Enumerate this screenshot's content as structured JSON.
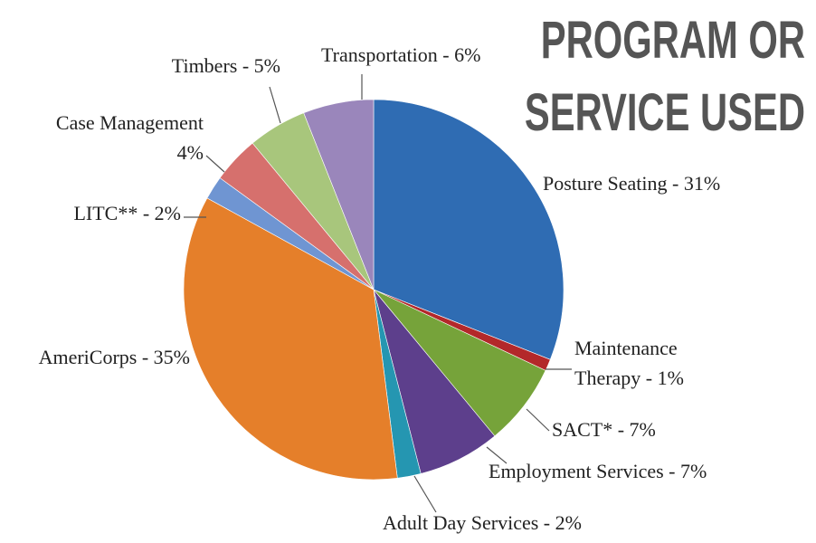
{
  "chart_data": {
    "type": "pie",
    "title": [
      "PROGRAM OR",
      "SERVICE USED"
    ],
    "labels": [
      [
        "Posture Seating - 31%"
      ],
      [
        "Maintenance",
        "Therapy - 1%"
      ],
      [
        "SACT* - 7%"
      ],
      [
        "Employment Services - 7%"
      ],
      [
        "Adult Day Services - 2%"
      ],
      [
        "AmeriCorps - 35%"
      ],
      [
        "LITC** - 2%"
      ],
      [
        "Case Management",
        "4%"
      ],
      [
        "Timbers - 5%"
      ],
      [
        "Transportation - 6%"
      ]
    ],
    "values": [
      31,
      1,
      7,
      7,
      2,
      35,
      2,
      4,
      5,
      6
    ],
    "colors": [
      "#2f6cb3",
      "#b3282a",
      "#76a33a",
      "#5d3f8c",
      "#2596b1",
      "#e57f2a",
      "#6f95d2",
      "#d6706d",
      "#a8c67c",
      "#9a86bb"
    ]
  }
}
